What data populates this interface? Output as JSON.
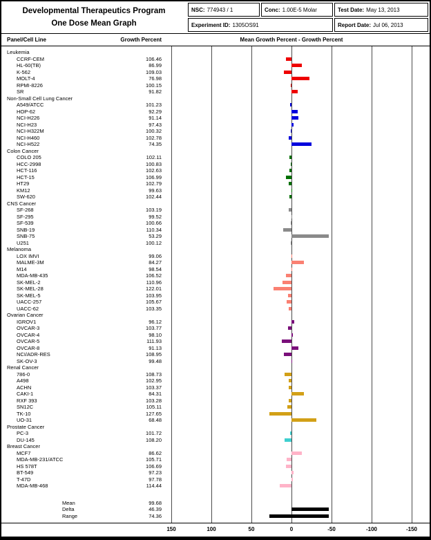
{
  "header": {
    "title_line1": "Developmental Therapeutics Program",
    "title_line2": "One Dose Mean Graph",
    "nsc_label": "NSC:",
    "nsc_value": "774943 / 1",
    "conc_label": "Conc:",
    "conc_value": "1.00E-5 Molar",
    "test_date_label": "Test Date:",
    "test_date_value": "May 13, 2013",
    "experiment_label": "Experiment ID:",
    "experiment_value": "1305OS91",
    "report_date_label": "Report Date:",
    "report_date_value": "Jul 06, 2013"
  },
  "columns": {
    "panel": "Panel/Cell Line",
    "growth": "Growth Percent",
    "chart": "Mean Growth Percent - Growth Percent"
  },
  "chart_data": {
    "type": "bar",
    "orientation": "horizontal",
    "title": "Mean Growth Percent - Growth Percent",
    "xlabel": "Mean Growth Percent - Growth Percent",
    "axis_note": "bars plotted as mean minus growth percent; positive (sensitive) extends right",
    "axis_ticks": [
      "150",
      "100",
      "50",
      "0",
      "-50",
      "-100",
      "-150"
    ],
    "xlim": [
      150,
      -150
    ],
    "grid": true,
    "mean": 99.68,
    "summary_color": "#000000",
    "panels": [
      {
        "name": "Leukemia",
        "color": "#ee0000",
        "lines": [
          {
            "label": "CCRF-CEM",
            "value": "106.46"
          },
          {
            "label": "HL-60(TB)",
            "value": "86.99"
          },
          {
            "label": "K-562",
            "value": "109.03"
          },
          {
            "label": "MOLT-4",
            "value": "76.98"
          },
          {
            "label": "RPMI-8226",
            "value": "100.15"
          },
          {
            "label": "SR",
            "value": "91.82"
          }
        ]
      },
      {
        "name": "Non-Small Cell Lung Cancer",
        "color": "#0000dd",
        "lines": [
          {
            "label": "A549/ATCC",
            "value": "101.23"
          },
          {
            "label": "HOP-62",
            "value": "92.29"
          },
          {
            "label": "NCI-H226",
            "value": "91.14"
          },
          {
            "label": "NCI-H23",
            "value": "97.43"
          },
          {
            "label": "NCI-H322M",
            "value": "100.32"
          },
          {
            "label": "NCI-H460",
            "value": "102.78"
          },
          {
            "label": "NCI-H522",
            "value": "74.35"
          }
        ]
      },
      {
        "name": "Colon Cancer",
        "color": "#007000",
        "lines": [
          {
            "label": "COLO 205",
            "value": "102.11"
          },
          {
            "label": "HCC-2998",
            "value": "100.83"
          },
          {
            "label": "HCT-116",
            "value": "102.63"
          },
          {
            "label": "HCT-15",
            "value": "106.99"
          },
          {
            "label": "HT29",
            "value": "102.79"
          },
          {
            "label": "KM12",
            "value": "99.63"
          },
          {
            "label": "SW-620",
            "value": "102.44"
          }
        ]
      },
      {
        "name": "CNS Cancer",
        "color": "#8a8a8a",
        "lines": [
          {
            "label": "SF-268",
            "value": "103.19"
          },
          {
            "label": "SF-295",
            "value": "99.52"
          },
          {
            "label": "SF-539",
            "value": "100.66"
          },
          {
            "label": "SNB-19",
            "value": "110.34"
          },
          {
            "label": "SNB-75",
            "value": "53.29"
          },
          {
            "label": "U251",
            "value": "100.12"
          }
        ]
      },
      {
        "name": "Melanoma",
        "color": "#fa8072",
        "lines": [
          {
            "label": "LOX IMVI",
            "value": "99.06"
          },
          {
            "label": "MALME-3M",
            "value": "84.27"
          },
          {
            "label": "M14",
            "value": "98.54"
          },
          {
            "label": "MDA-MB-435",
            "value": "106.52"
          },
          {
            "label": "SK-MEL-2",
            "value": "110.96"
          },
          {
            "label": "SK-MEL-28",
            "value": "122.01"
          },
          {
            "label": "SK-MEL-5",
            "value": "103.95"
          },
          {
            "label": "UACC-257",
            "value": "105.67"
          },
          {
            "label": "UACC-62",
            "value": "103.35"
          }
        ]
      },
      {
        "name": "Ovarian Cancer",
        "color": "#7a0f7a",
        "lines": [
          {
            "label": "IGROV1",
            "value": "96.12"
          },
          {
            "label": "OVCAR-3",
            "value": "103.77"
          },
          {
            "label": "OVCAR-4",
            "value": "98.10"
          },
          {
            "label": "OVCAR-5",
            "value": "111.93"
          },
          {
            "label": "OVCAR-8",
            "value": "91.13"
          },
          {
            "label": "NCI/ADR-RES",
            "value": "108.95"
          },
          {
            "label": "SK-OV-3",
            "value": "99.48"
          }
        ]
      },
      {
        "name": "Renal Cancer",
        "color": "#d2a017",
        "lines": [
          {
            "label": "786-0",
            "value": "108.73"
          },
          {
            "label": "A498",
            "value": "102.95"
          },
          {
            "label": "ACHN",
            "value": "103.37"
          },
          {
            "label": "CAKI-1",
            "value": "84.31"
          },
          {
            "label": "RXF 393",
            "value": "103.28"
          },
          {
            "label": "SN12C",
            "value": "105.11"
          },
          {
            "label": "TK-10",
            "value": "127.65"
          },
          {
            "label": "UO-31",
            "value": "68.48"
          }
        ]
      },
      {
        "name": "Prostate Cancer",
        "color": "#3ecfcf",
        "lines": [
          {
            "label": "PC-3",
            "value": "101.72"
          },
          {
            "label": "DU-145",
            "value": "108.20"
          }
        ]
      },
      {
        "name": "Breast Cancer",
        "color": "#ffb3c8",
        "lines": [
          {
            "label": "MCF7",
            "value": "86.62"
          },
          {
            "label": "MDA-MB-231/ATCC",
            "value": "105.71"
          },
          {
            "label": "HS 578T",
            "value": "106.69"
          },
          {
            "label": "BT-549",
            "value": "97.23"
          },
          {
            "label": "T-47D",
            "value": "97.78"
          },
          {
            "label": "MDA-MB-468",
            "value": "114.44"
          }
        ]
      }
    ],
    "summary": [
      {
        "label": "Mean",
        "value": "99.68",
        "bar": "none"
      },
      {
        "label": "Delta",
        "value": "46.39",
        "bar": "delta"
      },
      {
        "label": "Range",
        "value": "74.36",
        "bar": "range"
      }
    ]
  }
}
